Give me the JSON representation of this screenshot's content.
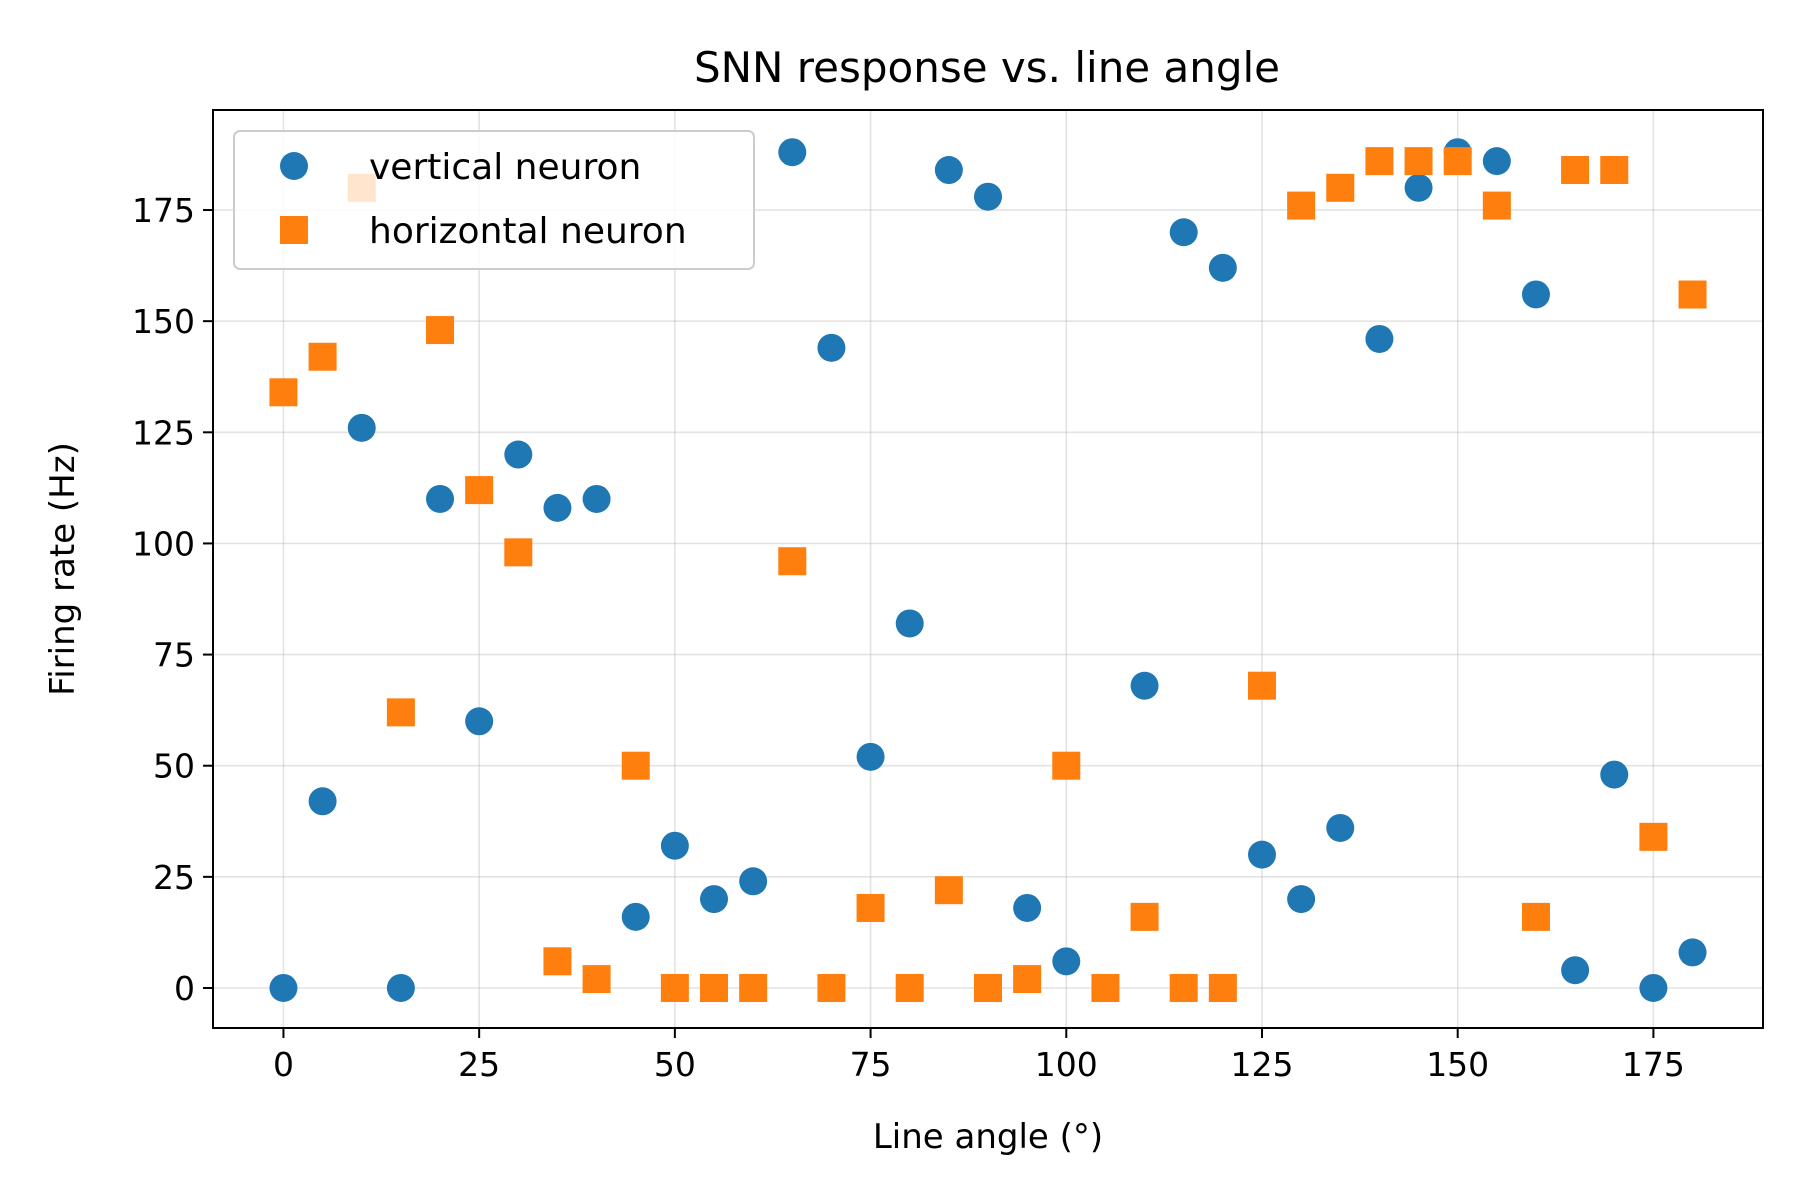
{
  "chart_data": {
    "type": "scatter",
    "title": "SNN response vs. line angle",
    "xlabel": "Line angle (°)",
    "ylabel": "Firing rate (Hz)",
    "xlim": [
      -9,
      189
    ],
    "ylim": [
      -9,
      197.5
    ],
    "xticks": [
      0,
      25,
      50,
      75,
      100,
      125,
      150,
      175
    ],
    "yticks": [
      0,
      25,
      50,
      75,
      100,
      125,
      150,
      175
    ],
    "grid": true,
    "legend_position": "top-left",
    "series": [
      {
        "name": "vertical neuron",
        "marker": "circle",
        "color": "#1f77b4",
        "points": [
          [
            0,
            0
          ],
          [
            5,
            42
          ],
          [
            10,
            126
          ],
          [
            15,
            0
          ],
          [
            20,
            110
          ],
          [
            25,
            60
          ],
          [
            30,
            120
          ],
          [
            35,
            108
          ],
          [
            40,
            110
          ],
          [
            45,
            16
          ],
          [
            50,
            32
          ],
          [
            55,
            20
          ],
          [
            60,
            24
          ],
          [
            65,
            188
          ],
          [
            70,
            144
          ],
          [
            75,
            52
          ],
          [
            80,
            82
          ],
          [
            85,
            184
          ],
          [
            90,
            178
          ],
          [
            95,
            18
          ],
          [
            100,
            6
          ],
          [
            110,
            68
          ],
          [
            115,
            170
          ],
          [
            120,
            162
          ],
          [
            125,
            30
          ],
          [
            130,
            20
          ],
          [
            135,
            36
          ],
          [
            140,
            146
          ],
          [
            145,
            180
          ],
          [
            150,
            188
          ],
          [
            155,
            186
          ],
          [
            160,
            156
          ],
          [
            165,
            4
          ],
          [
            170,
            48
          ],
          [
            175,
            0
          ],
          [
            180,
            8
          ]
        ]
      },
      {
        "name": "horizontal neuron",
        "marker": "square",
        "color": "#ff7f0e",
        "points": [
          [
            0,
            134
          ],
          [
            5,
            142
          ],
          [
            10,
            180
          ],
          [
            15,
            62
          ],
          [
            20,
            148
          ],
          [
            25,
            112
          ],
          [
            30,
            98
          ],
          [
            35,
            6
          ],
          [
            40,
            2
          ],
          [
            45,
            50
          ],
          [
            50,
            0
          ],
          [
            55,
            0
          ],
          [
            60,
            0
          ],
          [
            65,
            96
          ],
          [
            70,
            0
          ],
          [
            75,
            18
          ],
          [
            80,
            0
          ],
          [
            85,
            22
          ],
          [
            90,
            0
          ],
          [
            95,
            2
          ],
          [
            100,
            50
          ],
          [
            105,
            0
          ],
          [
            110,
            16
          ],
          [
            115,
            0
          ],
          [
            120,
            0
          ],
          [
            125,
            68
          ],
          [
            130,
            176
          ],
          [
            135,
            180
          ],
          [
            140,
            186
          ],
          [
            145,
            186
          ],
          [
            150,
            186
          ],
          [
            155,
            176
          ],
          [
            160,
            16
          ],
          [
            165,
            184
          ],
          [
            170,
            184
          ],
          [
            175,
            34
          ],
          [
            180,
            156
          ]
        ]
      }
    ]
  }
}
